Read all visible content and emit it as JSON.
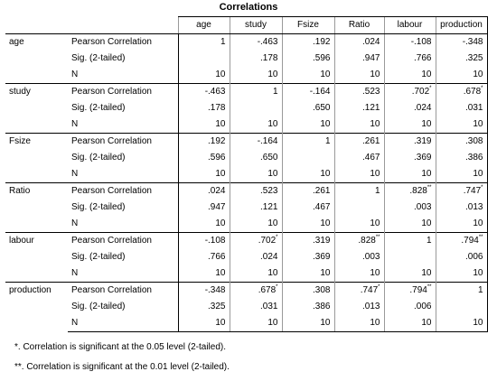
{
  "title": "Correlations",
  "columns": [
    "age",
    "study",
    "Fsize",
    "Ratio",
    "labour",
    "production"
  ],
  "rows": [
    {
      "var": "age",
      "stats": [
        {
          "label": "Pearson Correlation",
          "cells": [
            {
              "v": "1",
              "s": ""
            },
            {
              "v": "-.463",
              "s": ""
            },
            {
              "v": ".192",
              "s": ""
            },
            {
              "v": ".024",
              "s": ""
            },
            {
              "v": "-.108",
              "s": ""
            },
            {
              "v": "-.348",
              "s": ""
            }
          ]
        },
        {
          "label": "Sig. (2-tailed)",
          "cells": [
            {
              "v": "",
              "s": ""
            },
            {
              "v": ".178",
              "s": ""
            },
            {
              "v": ".596",
              "s": ""
            },
            {
              "v": ".947",
              "s": ""
            },
            {
              "v": ".766",
              "s": ""
            },
            {
              "v": ".325",
              "s": ""
            }
          ]
        },
        {
          "label": "N",
          "cells": [
            {
              "v": "10",
              "s": ""
            },
            {
              "v": "10",
              "s": ""
            },
            {
              "v": "10",
              "s": ""
            },
            {
              "v": "10",
              "s": ""
            },
            {
              "v": "10",
              "s": ""
            },
            {
              "v": "10",
              "s": ""
            }
          ]
        }
      ]
    },
    {
      "var": "study",
      "stats": [
        {
          "label": "Pearson Correlation",
          "cells": [
            {
              "v": "-.463",
              "s": ""
            },
            {
              "v": "1",
              "s": ""
            },
            {
              "v": "-.164",
              "s": ""
            },
            {
              "v": ".523",
              "s": ""
            },
            {
              "v": ".702",
              "s": "*"
            },
            {
              "v": ".678",
              "s": "*"
            }
          ]
        },
        {
          "label": "Sig. (2-tailed)",
          "cells": [
            {
              "v": ".178",
              "s": ""
            },
            {
              "v": "",
              "s": ""
            },
            {
              "v": ".650",
              "s": ""
            },
            {
              "v": ".121",
              "s": ""
            },
            {
              "v": ".024",
              "s": ""
            },
            {
              "v": ".031",
              "s": ""
            }
          ]
        },
        {
          "label": "N",
          "cells": [
            {
              "v": "10",
              "s": ""
            },
            {
              "v": "10",
              "s": ""
            },
            {
              "v": "10",
              "s": ""
            },
            {
              "v": "10",
              "s": ""
            },
            {
              "v": "10",
              "s": ""
            },
            {
              "v": "10",
              "s": ""
            }
          ]
        }
      ]
    },
    {
      "var": "Fsize",
      "stats": [
        {
          "label": "Pearson Correlation",
          "cells": [
            {
              "v": ".192",
              "s": ""
            },
            {
              "v": "-.164",
              "s": ""
            },
            {
              "v": "1",
              "s": ""
            },
            {
              "v": ".261",
              "s": ""
            },
            {
              "v": ".319",
              "s": ""
            },
            {
              "v": ".308",
              "s": ""
            }
          ]
        },
        {
          "label": "Sig. (2-tailed)",
          "cells": [
            {
              "v": ".596",
              "s": ""
            },
            {
              "v": ".650",
              "s": ""
            },
            {
              "v": "",
              "s": ""
            },
            {
              "v": ".467",
              "s": ""
            },
            {
              "v": ".369",
              "s": ""
            },
            {
              "v": ".386",
              "s": ""
            }
          ]
        },
        {
          "label": "N",
          "cells": [
            {
              "v": "10",
              "s": ""
            },
            {
              "v": "10",
              "s": ""
            },
            {
              "v": "10",
              "s": ""
            },
            {
              "v": "10",
              "s": ""
            },
            {
              "v": "10",
              "s": ""
            },
            {
              "v": "10",
              "s": ""
            }
          ]
        }
      ]
    },
    {
      "var": "Ratio",
      "stats": [
        {
          "label": "Pearson Correlation",
          "cells": [
            {
              "v": ".024",
              "s": ""
            },
            {
              "v": ".523",
              "s": ""
            },
            {
              "v": ".261",
              "s": ""
            },
            {
              "v": "1",
              "s": ""
            },
            {
              "v": ".828",
              "s": "**"
            },
            {
              "v": ".747",
              "s": "*"
            }
          ]
        },
        {
          "label": "Sig. (2-tailed)",
          "cells": [
            {
              "v": ".947",
              "s": ""
            },
            {
              "v": ".121",
              "s": ""
            },
            {
              "v": ".467",
              "s": ""
            },
            {
              "v": "",
              "s": ""
            },
            {
              "v": ".003",
              "s": ""
            },
            {
              "v": ".013",
              "s": ""
            }
          ]
        },
        {
          "label": "N",
          "cells": [
            {
              "v": "10",
              "s": ""
            },
            {
              "v": "10",
              "s": ""
            },
            {
              "v": "10",
              "s": ""
            },
            {
              "v": "10",
              "s": ""
            },
            {
              "v": "10",
              "s": ""
            },
            {
              "v": "10",
              "s": ""
            }
          ]
        }
      ]
    },
    {
      "var": "labour",
      "stats": [
        {
          "label": "Pearson Correlation",
          "cells": [
            {
              "v": "-.108",
              "s": ""
            },
            {
              "v": ".702",
              "s": "*"
            },
            {
              "v": ".319",
              "s": ""
            },
            {
              "v": ".828",
              "s": "**"
            },
            {
              "v": "1",
              "s": ""
            },
            {
              "v": ".794",
              "s": "**"
            }
          ]
        },
        {
          "label": "Sig. (2-tailed)",
          "cells": [
            {
              "v": ".766",
              "s": ""
            },
            {
              "v": ".024",
              "s": ""
            },
            {
              "v": ".369",
              "s": ""
            },
            {
              "v": ".003",
              "s": ""
            },
            {
              "v": "",
              "s": ""
            },
            {
              "v": ".006",
              "s": ""
            }
          ]
        },
        {
          "label": "N",
          "cells": [
            {
              "v": "10",
              "s": ""
            },
            {
              "v": "10",
              "s": ""
            },
            {
              "v": "10",
              "s": ""
            },
            {
              "v": "10",
              "s": ""
            },
            {
              "v": "10",
              "s": ""
            },
            {
              "v": "10",
              "s": ""
            }
          ]
        }
      ]
    },
    {
      "var": "production",
      "stats": [
        {
          "label": "Pearson Correlation",
          "cells": [
            {
              "v": "-.348",
              "s": ""
            },
            {
              "v": ".678",
              "s": "*"
            },
            {
              "v": ".308",
              "s": ""
            },
            {
              "v": ".747",
              "s": "*"
            },
            {
              "v": ".794",
              "s": "**"
            },
            {
              "v": "1",
              "s": ""
            }
          ]
        },
        {
          "label": "Sig. (2-tailed)",
          "cells": [
            {
              "v": ".325",
              "s": ""
            },
            {
              "v": ".031",
              "s": ""
            },
            {
              "v": ".386",
              "s": ""
            },
            {
              "v": ".013",
              "s": ""
            },
            {
              "v": ".006",
              "s": ""
            },
            {
              "v": "",
              "s": ""
            }
          ]
        },
        {
          "label": "N",
          "cells": [
            {
              "v": "10",
              "s": ""
            },
            {
              "v": "10",
              "s": ""
            },
            {
              "v": "10",
              "s": ""
            },
            {
              "v": "10",
              "s": ""
            },
            {
              "v": "10",
              "s": ""
            },
            {
              "v": "10",
              "s": ""
            }
          ]
        }
      ]
    }
  ],
  "footnotes": [
    "*. Correlation is significant at the 0.05 level (2-tailed).",
    "**. Correlation is significant at the 0.01 level (2-tailed)."
  ]
}
